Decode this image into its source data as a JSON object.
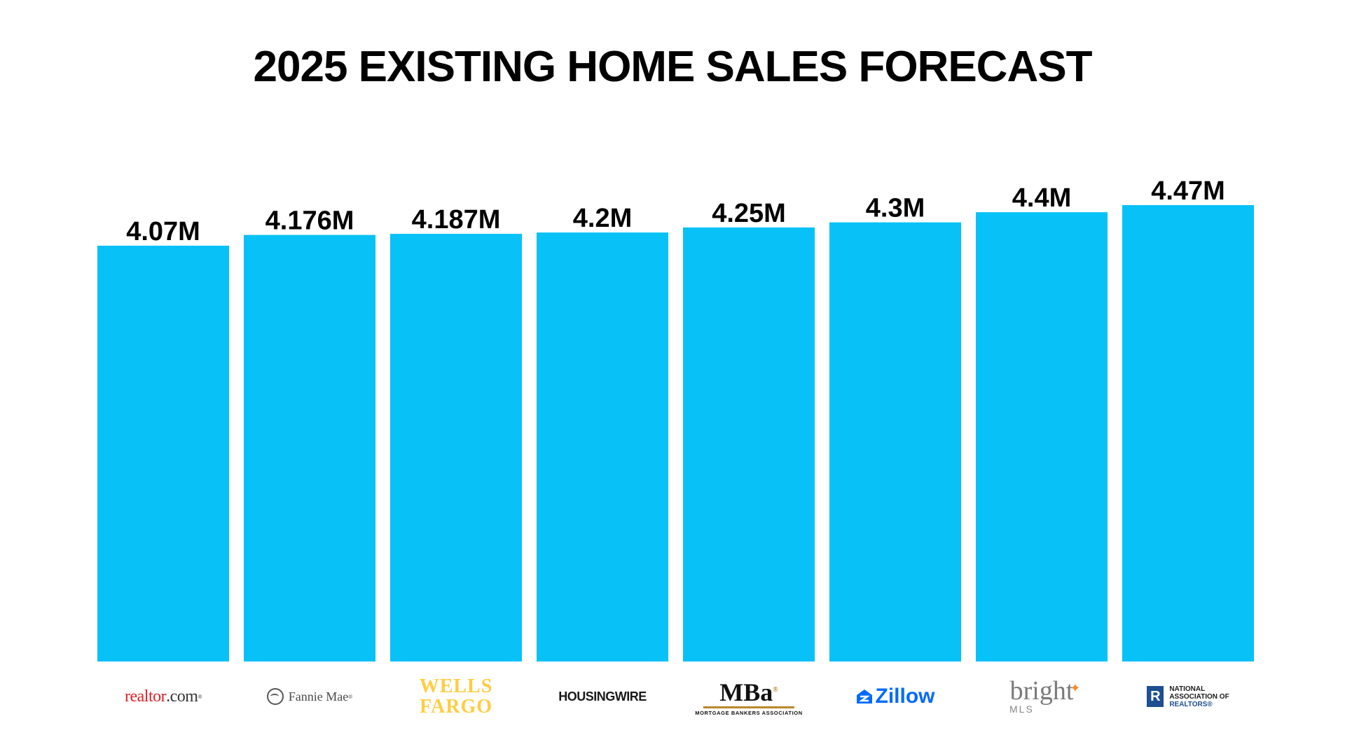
{
  "chart_data": {
    "type": "bar",
    "title": "2025 EXISTING HOME SALES FORECAST",
    "categories": [
      "realtor.com",
      "Fannie Mae",
      "Wells Fargo",
      "HousingWire",
      "Mortgage Bankers Association",
      "Zillow",
      "Bright MLS",
      "National Association of Realtors"
    ],
    "values": [
      4.07,
      4.176,
      4.187,
      4.2,
      4.25,
      4.3,
      4.4,
      4.47
    ],
    "value_labels": [
      "4.07M",
      "4.176M",
      "4.187M",
      "4.2M",
      "4.25M",
      "4.3M",
      "4.4M",
      "4.47M"
    ],
    "unit": "M",
    "xlabel": "",
    "ylabel": "",
    "grid": false,
    "legend": "none",
    "bar_color": "#08c1f7"
  },
  "logos": {
    "realtor": {
      "text_a": "real",
      "text_b": "tor",
      "text_c": ".com"
    },
    "fannie": {
      "text": "Fannie Mae"
    },
    "wells": {
      "line1": "WELLS",
      "line2": "FARGO"
    },
    "housingwire": {
      "text": "HOUSINGWIRE"
    },
    "mba": {
      "word": "MBa",
      "sub": "MORTGAGE BANKERS ASSOCIATION"
    },
    "zillow": {
      "text": "Zillow"
    },
    "bright": {
      "word": "bright",
      "sub": "MLS"
    },
    "nar": {
      "mark": "R",
      "line1": "NATIONAL",
      "line2": "ASSOCIATION OF",
      "line3": "REALTORS"
    },
    "colors": {
      "realtor_red": "#d92228",
      "wells_gold": "#ffcd41",
      "zillow_blue": "#006aff",
      "bright_orange": "#f28b30",
      "nar_blue": "#1d4f91"
    }
  }
}
